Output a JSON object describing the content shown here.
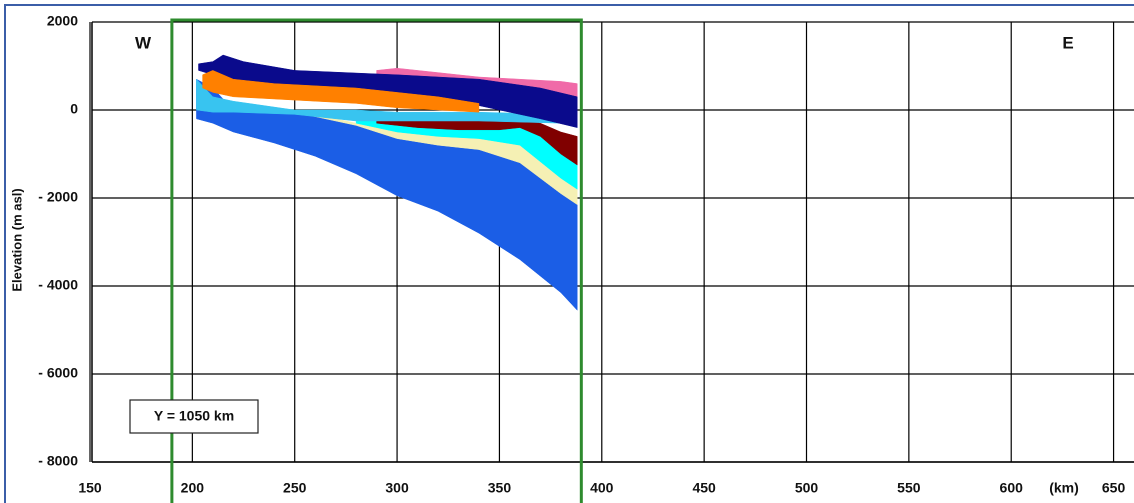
{
  "chart_data": {
    "type": "cross-section",
    "y_label": "Elevation (m asl)",
    "x_unit_label": "(km)",
    "annotations": {
      "west": "W",
      "east": "E",
      "section": "Y = 1050 km"
    },
    "xlim": [
      150,
      659
    ],
    "xticks": [
      150,
      200,
      250,
      300,
      350,
      400,
      450,
      500,
      550,
      600,
      650
    ],
    "ylim": [
      -8000,
      2000
    ],
    "yticks": [
      2000,
      0,
      {
        "value": -2000,
        "label": "- 2000"
      },
      {
        "value": -4000,
        "label": "- 4000"
      },
      {
        "value": -6000,
        "label": "- 6000"
      },
      {
        "value": -8000,
        "label": "- 8000"
      }
    ],
    "grid": true,
    "highlight": {
      "xlim": [
        190,
        390
      ],
      "color": "#2e8b2e"
    },
    "layers": [
      {
        "color": "#1b5ee6",
        "x": [
          202,
          210,
          220,
          240,
          260,
          280,
          300,
          320,
          340,
          360,
          380,
          388
        ],
        "top": [
          700,
          500,
          0,
          -50,
          -100,
          -350,
          -650,
          -800,
          -900,
          -1200,
          -1900,
          -2150
        ],
        "bottom": [
          -200,
          -300,
          -500,
          -750,
          -1050,
          -1450,
          -1950,
          -2300,
          -2800,
          -3400,
          -4150,
          -4550
        ]
      },
      {
        "color": "#f5f0b4",
        "x": [
          255,
          280,
          300,
          320,
          340,
          360,
          380,
          388
        ],
        "top": [
          -50,
          -300,
          -500,
          -600,
          -650,
          -800,
          -1550,
          -1800
        ],
        "bottom": [
          -100,
          -350,
          -650,
          -800,
          -900,
          -1200,
          -1900,
          -2150
        ]
      },
      {
        "color": "#00ffff",
        "x": [
          280,
          300,
          320,
          340,
          360,
          380,
          388
        ],
        "top": [
          -200,
          -250,
          -250,
          -250,
          -250,
          -500,
          -700
        ],
        "bottom": [
          -300,
          -500,
          -600,
          -650,
          -800,
          -1550,
          -1800
        ]
      },
      {
        "color": "#800000",
        "x": [
          290,
          310,
          330,
          350,
          360,
          370,
          380,
          388
        ],
        "top": [
          -250,
          -250,
          -250,
          -200,
          -200,
          -300,
          -500,
          -600
        ],
        "bottom": [
          -300,
          -400,
          -450,
          -450,
          -400,
          -600,
          -1000,
          -1250
        ]
      },
      {
        "color": "#38c4f0",
        "x": [
          202,
          210,
          220,
          250,
          280,
          300,
          340,
          380,
          388
        ],
        "top": [
          700,
          300,
          200,
          0,
          0,
          -50,
          -50,
          -100,
          -200
        ],
        "bottom": [
          0,
          -50,
          -50,
          -100,
          -250,
          -250,
          -250,
          -300,
          -400
        ]
      },
      {
        "color": "#f06aa8",
        "x": [
          290,
          300,
          320,
          340,
          360,
          380,
          388
        ],
        "top": [
          900,
          950,
          850,
          750,
          700,
          650,
          600
        ],
        "bottom": [
          700,
          750,
          600,
          400,
          200,
          0,
          -100
        ]
      },
      {
        "color": "#0a0a8c",
        "x": [
          203,
          210,
          215,
          225,
          250,
          300,
          340,
          370,
          388
        ],
        "top": [
          1050,
          1100,
          1250,
          1100,
          900,
          800,
          700,
          500,
          300
        ],
        "bottom": [
          900,
          800,
          700,
          600,
          500,
          250,
          100,
          -200,
          -400
        ]
      },
      {
        "color": "#ff8000",
        "x": [
          205,
          210,
          220,
          240,
          260,
          280,
          300,
          320,
          340
        ],
        "top": [
          800,
          900,
          700,
          600,
          550,
          500,
          400,
          300,
          150
        ],
        "bottom": [
          500,
          400,
          300,
          250,
          200,
          150,
          50,
          0,
          -50
        ]
      }
    ]
  }
}
